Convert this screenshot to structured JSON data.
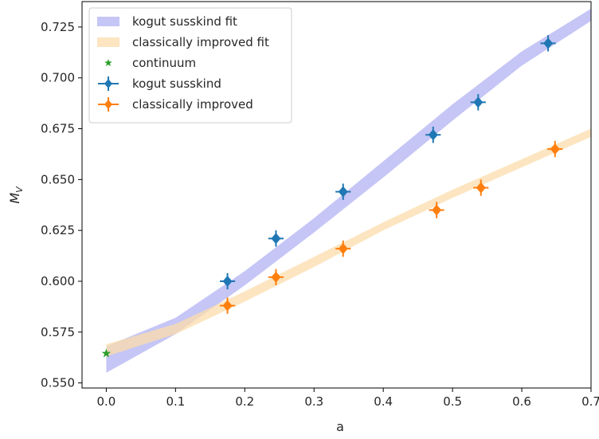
{
  "chart_data": {
    "type": "scatter",
    "title": "",
    "xlabel": "a",
    "ylabel": "M",
    "ylabel_sub": "V",
    "xlim": [
      -0.035,
      0.7
    ],
    "ylim": [
      0.5475,
      0.7375
    ],
    "xticks": [
      0.0,
      0.1,
      0.2,
      0.3,
      0.4,
      0.5,
      0.6,
      0.7
    ],
    "xtick_labels": [
      "0.0",
      "0.1",
      "0.2",
      "0.3",
      "0.4",
      "0.5",
      "0.6",
      "0.7"
    ],
    "yticks": [
      0.55,
      0.575,
      0.6,
      0.625,
      0.65,
      0.675,
      0.7,
      0.725
    ],
    "ytick_labels": [
      "0.550",
      "0.575",
      "0.600",
      "0.625",
      "0.650",
      "0.675",
      "0.700",
      "0.725"
    ],
    "grid": false,
    "legend_position": "top-left",
    "series": [
      {
        "name": "kogut susskind fit",
        "kind": "band",
        "color": "#9f9ff0",
        "x": [
          0.0,
          0.1,
          0.2,
          0.3,
          0.4,
          0.5,
          0.6,
          0.7
        ],
        "y_low": [
          0.555,
          0.574,
          0.598,
          0.624,
          0.651,
          0.679,
          0.706,
          0.728
        ],
        "y_high": [
          0.568,
          0.582,
          0.605,
          0.631,
          0.659,
          0.687,
          0.713,
          0.734
        ]
      },
      {
        "name": "classically improved fit",
        "kind": "band",
        "color": "#fbdcab",
        "x": [
          0.0,
          0.1,
          0.2,
          0.3,
          0.4,
          0.5,
          0.6,
          0.7
        ],
        "y_low": [
          0.563,
          0.574,
          0.59,
          0.607,
          0.625,
          0.641,
          0.656,
          0.671
        ],
        "y_high": [
          0.569,
          0.579,
          0.595,
          0.612,
          0.629,
          0.645,
          0.66,
          0.675
        ]
      },
      {
        "name": "continuum",
        "kind": "star",
        "color": "#2ca02c",
        "x": [
          0.0
        ],
        "y": [
          0.5645
        ]
      },
      {
        "name": "kogut susskind",
        "kind": "errorbar",
        "color": "#1f77b4",
        "x": [
          0.175,
          0.245,
          0.342,
          0.472,
          0.537,
          0.638
        ],
        "y": [
          0.6,
          0.621,
          0.644,
          0.672,
          0.688,
          0.717
        ],
        "xerr": [
          0.011,
          0.011,
          0.011,
          0.011,
          0.011,
          0.011
        ],
        "yerr": [
          0.004,
          0.004,
          0.004,
          0.004,
          0.004,
          0.004
        ]
      },
      {
        "name": "classically improved",
        "kind": "errorbar",
        "color": "#ff7f0e",
        "x": [
          0.175,
          0.245,
          0.342,
          0.477,
          0.541,
          0.648
        ],
        "y": [
          0.588,
          0.602,
          0.616,
          0.635,
          0.646,
          0.665
        ],
        "xerr": [
          0.011,
          0.011,
          0.011,
          0.011,
          0.011,
          0.011
        ],
        "yerr": [
          0.004,
          0.004,
          0.004,
          0.004,
          0.004,
          0.004
        ]
      }
    ]
  }
}
